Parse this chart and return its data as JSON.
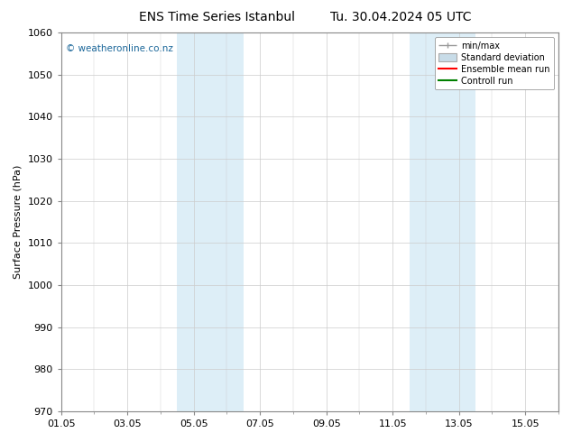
{
  "title_left": "ENS Time Series Istanbul",
  "title_right": "Tu. 30.04.2024 05 UTC",
  "ylabel": "Surface Pressure (hPa)",
  "ylim": [
    970,
    1060
  ],
  "yticks": [
    970,
    980,
    990,
    1000,
    1010,
    1020,
    1030,
    1040,
    1050,
    1060
  ],
  "xtick_labels": [
    "01.05",
    "03.05",
    "05.05",
    "07.05",
    "09.05",
    "11.05",
    "13.05",
    "15.05"
  ],
  "xtick_positions": [
    0,
    2,
    4,
    6,
    8,
    10,
    12,
    14
  ],
  "xlim": [
    0,
    15
  ],
  "shaded_regions": [
    {
      "x_start": 3.5,
      "x_end": 4.5,
      "color": "#ddeef7"
    },
    {
      "x_start": 4.5,
      "x_end": 5.5,
      "color": "#ddeef7"
    },
    {
      "x_start": 10.5,
      "x_end": 11.5,
      "color": "#ddeef7"
    },
    {
      "x_start": 11.5,
      "x_end": 12.5,
      "color": "#ddeef7"
    }
  ],
  "watermark": "© weatheronline.co.nz",
  "watermark_color": "#1a6699",
  "watermark_fontsize": 7.5,
  "bg_color": "#ffffff",
  "border_color": "#888888",
  "legend_items": [
    {
      "label": "min/max",
      "color": "#999999",
      "style": "hline"
    },
    {
      "label": "Standard deviation",
      "color": "#c8dce8",
      "style": "rect"
    },
    {
      "label": "Ensemble mean run",
      "color": "#ff0000",
      "style": "line"
    },
    {
      "label": "Controll run",
      "color": "#008000",
      "style": "line"
    }
  ],
  "title_fontsize": 10,
  "axis_label_fontsize": 8,
  "tick_fontsize": 8,
  "legend_fontsize": 7
}
